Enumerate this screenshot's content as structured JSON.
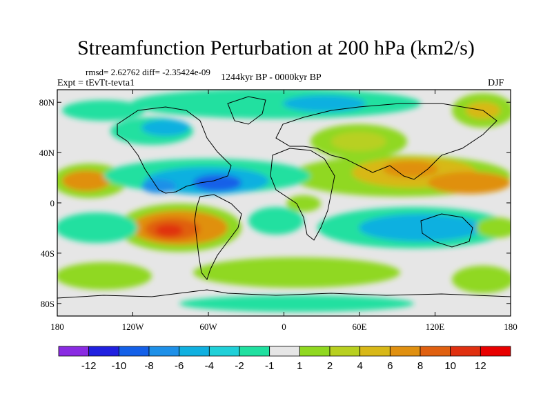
{
  "title": "Streamfunction Perturbation at 200 hPa (km2/s)",
  "stats": "rmsd= 2.62762 diff= -2.35424e-09",
  "experiment": "Expt = tEvTt-tevta1",
  "period": "1244kyr BP - 0000kyr BP",
  "season": "DJF",
  "lon_ticks": [
    {
      "lon": -180,
      "label": "180"
    },
    {
      "lon": -120,
      "label": "120W"
    },
    {
      "lon": -60,
      "label": "60W"
    },
    {
      "lon": 0,
      "label": "0"
    },
    {
      "lon": 60,
      "label": "60E"
    },
    {
      "lon": 120,
      "label": "120E"
    },
    {
      "lon": 180,
      "label": "180"
    }
  ],
  "lat_ticks": [
    {
      "lat": 80,
      "label": "80N"
    },
    {
      "lat": 40,
      "label": "40N"
    },
    {
      "lat": 0,
      "label": "0"
    },
    {
      "lat": -40,
      "label": "40S"
    },
    {
      "lat": -80,
      "label": "80S"
    }
  ],
  "colorbar": {
    "colors": [
      "#8a2be2",
      "#2020e0",
      "#1460e8",
      "#1e90e8",
      "#10b0e0",
      "#20d0d8",
      "#20e0a0",
      "#e6e6e6",
      "#90d820",
      "#b8d020",
      "#d8b818",
      "#e09010",
      "#e06010",
      "#e03010",
      "#e80000"
    ],
    "labels": [
      "-12",
      "-10",
      "-8",
      "-6",
      "-4",
      "-2",
      "-1",
      "1",
      "2",
      "4",
      "6",
      "8",
      "10",
      "12"
    ]
  },
  "chart_data": {
    "type": "heatmap",
    "title": "Streamfunction Perturbation at 200 hPa (km2/s)",
    "units": "km2/s",
    "levels": [
      -12,
      -10,
      -8,
      -6,
      -4,
      -2,
      -1,
      1,
      2,
      4,
      6,
      8,
      10,
      12
    ],
    "xlim": [
      -180,
      180
    ],
    "ylim": [
      -90,
      90
    ],
    "features": [
      {
        "lon": -85,
        "lat": -22,
        "value": 9
      },
      {
        "lon": -172,
        "lat": 18,
        "value": 5
      },
      {
        "lon": -45,
        "lat": 18,
        "value": -6
      },
      {
        "lon": -90,
        "lat": 14,
        "value": -4
      },
      {
        "lon": 110,
        "lat": 20,
        "value": 5
      },
      {
        "lon": 155,
        "lat": 18,
        "value": 4
      },
      {
        "lon": 60,
        "lat": 48,
        "value": 3
      },
      {
        "lon": 0,
        "lat": -65,
        "value": 2
      },
      {
        "lon": 170,
        "lat": -65,
        "value": 2
      },
      {
        "lon": -175,
        "lat": -30,
        "value": -1
      },
      {
        "lon": 110,
        "lat": -22,
        "value": -3
      },
      {
        "lon": -45,
        "lat": 66,
        "value": -2
      }
    ]
  }
}
